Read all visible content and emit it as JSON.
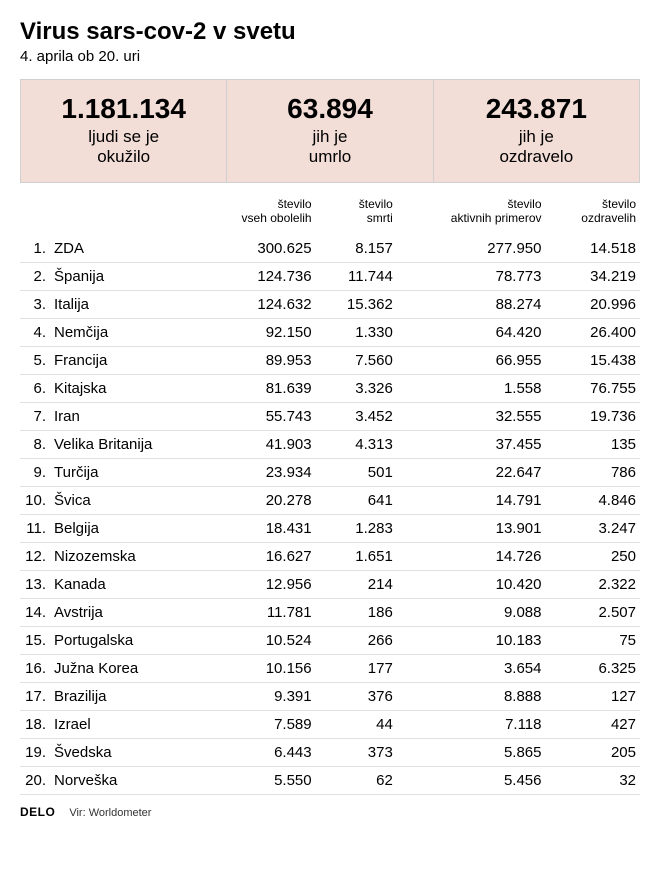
{
  "header": {
    "title": "Virus sars-cov-2 v svetu",
    "subtitle": "4. aprila ob 20. uri"
  },
  "summary": {
    "background_color": "#f2ddd7",
    "border_color": "#d0d0d0",
    "cells": [
      {
        "value": "1.181.134",
        "label": "ljudi se je\nokužilo"
      },
      {
        "value": "63.894",
        "label": "jih je\numrlo"
      },
      {
        "value": "243.871",
        "label": "jih je\nozdravelo"
      }
    ],
    "value_fontsize": 28,
    "label_fontsize": 17
  },
  "table": {
    "columns": [
      "število\nvseh obolelih",
      "število\nsmrti",
      "število\naktivnih primerov",
      "število\nozdravelih"
    ],
    "header_fontsize": 12,
    "cell_fontsize": 15,
    "row_border_color": "#e0e0e0",
    "rows": [
      {
        "rank": "1.",
        "country": "ZDA",
        "c1": "300.625",
        "c2": "8.157",
        "c3": "277.950",
        "c4": "14.518"
      },
      {
        "rank": "2.",
        "country": "Španija",
        "c1": "124.736",
        "c2": "11.744",
        "c3": "78.773",
        "c4": "34.219"
      },
      {
        "rank": "3.",
        "country": "Italija",
        "c1": "124.632",
        "c2": "15.362",
        "c3": "88.274",
        "c4": "20.996"
      },
      {
        "rank": "4.",
        "country": "Nemčija",
        "c1": "92.150",
        "c2": "1.330",
        "c3": "64.420",
        "c4": "26.400"
      },
      {
        "rank": "5.",
        "country": "Francija",
        "c1": "89.953",
        "c2": "7.560",
        "c3": "66.955",
        "c4": "15.438"
      },
      {
        "rank": "6.",
        "country": "Kitajska",
        "c1": "81.639",
        "c2": "3.326",
        "c3": "1.558",
        "c4": "76.755"
      },
      {
        "rank": "7.",
        "country": "Iran",
        "c1": "55.743",
        "c2": "3.452",
        "c3": "32.555",
        "c4": "19.736"
      },
      {
        "rank": "8.",
        "country": "Velika Britanija",
        "c1": "41.903",
        "c2": "4.313",
        "c3": "37.455",
        "c4": "135"
      },
      {
        "rank": "9.",
        "country": "Turčija",
        "c1": "23.934",
        "c2": "501",
        "c3": "22.647",
        "c4": "786"
      },
      {
        "rank": "10.",
        "country": "Švica",
        "c1": "20.278",
        "c2": "641",
        "c3": "14.791",
        "c4": "4.846"
      },
      {
        "rank": "11.",
        "country": "Belgija",
        "c1": "18.431",
        "c2": "1.283",
        "c3": "13.901",
        "c4": "3.247"
      },
      {
        "rank": "12.",
        "country": "Nizozemska",
        "c1": "16.627",
        "c2": "1.651",
        "c3": "14.726",
        "c4": "250"
      },
      {
        "rank": "13.",
        "country": "Kanada",
        "c1": "12.956",
        "c2": "214",
        "c3": "10.420",
        "c4": "2.322"
      },
      {
        "rank": "14.",
        "country": "Avstrija",
        "c1": "11.781",
        "c2": "186",
        "c3": "9.088",
        "c4": "2.507"
      },
      {
        "rank": "15.",
        "country": "Portugalska",
        "c1": "10.524",
        "c2": "266",
        "c3": "10.183",
        "c4": "75"
      },
      {
        "rank": "16.",
        "country": "Južna Korea",
        "c1": "10.156",
        "c2": "177",
        "c3": "3.654",
        "c4": "6.325"
      },
      {
        "rank": "17.",
        "country": "Brazilija",
        "c1": "9.391",
        "c2": "376",
        "c3": "8.888",
        "c4": "127"
      },
      {
        "rank": "18.",
        "country": "Izrael",
        "c1": "7.589",
        "c2": "44",
        "c3": "7.118",
        "c4": "427"
      },
      {
        "rank": "19.",
        "country": "Švedska",
        "c1": "6.443",
        "c2": "373",
        "c3": "5.865",
        "c4": "205"
      },
      {
        "rank": "20.",
        "country": "Norveška",
        "c1": "5.550",
        "c2": "62",
        "c3": "5.456",
        "c4": "32"
      }
    ]
  },
  "footer": {
    "brand": "DELO",
    "source": "Vir: Worldometer"
  }
}
